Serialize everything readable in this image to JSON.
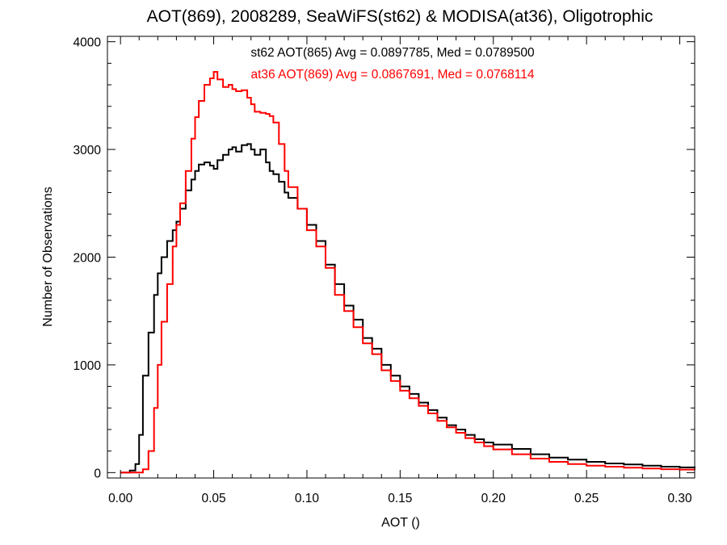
{
  "chart_data": {
    "type": "line",
    "title": "AOT(869), 2008289, SeaWiFS(st62) & MODISA(at36), Oligotrophic",
    "xlabel": "AOT ()",
    "ylabel": "Number of Observations",
    "xlim": [
      -0.007,
      0.308
    ],
    "ylim": [
      -50,
      4050
    ],
    "x_ticks": [
      0.0,
      0.05,
      0.1,
      0.15,
      0.2,
      0.25,
      0.3
    ],
    "x_tick_labels": [
      "0.00",
      "0.05",
      "0.10",
      "0.15",
      "0.20",
      "0.25",
      "0.30"
    ],
    "y_ticks": [
      0,
      1000,
      2000,
      3000,
      4000
    ],
    "y_tick_labels": [
      "0",
      "1000",
      "2000",
      "3000",
      "4000"
    ],
    "grid": false,
    "annotations": [
      {
        "text": "st62 AOT(865) Avg = 0.0897785, Med = 0.0789500",
        "color": "#000000"
      },
      {
        "text": "at36 AOT(869) Avg = 0.0867691, Med = 0.0768114",
        "color": "#ff0000"
      }
    ],
    "series": [
      {
        "color": "#000000",
        "x": [
          0.0,
          0.005,
          0.008,
          0.01,
          0.012,
          0.015,
          0.018,
          0.02,
          0.022,
          0.025,
          0.028,
          0.03,
          0.032,
          0.035,
          0.038,
          0.04,
          0.042,
          0.045,
          0.048,
          0.05,
          0.052,
          0.055,
          0.058,
          0.06,
          0.062,
          0.065,
          0.068,
          0.07,
          0.072,
          0.075,
          0.078,
          0.08,
          0.082,
          0.085,
          0.088,
          0.09,
          0.095,
          0.1,
          0.105,
          0.11,
          0.115,
          0.12,
          0.125,
          0.13,
          0.135,
          0.14,
          0.145,
          0.15,
          0.155,
          0.16,
          0.165,
          0.17,
          0.175,
          0.18,
          0.185,
          0.19,
          0.195,
          0.2,
          0.21,
          0.22,
          0.23,
          0.24,
          0.25,
          0.26,
          0.27,
          0.28,
          0.29,
          0.3,
          0.308
        ],
        "y": [
          0,
          20,
          80,
          350,
          900,
          1300,
          1650,
          1850,
          2000,
          2150,
          2250,
          2330,
          2450,
          2620,
          2720,
          2800,
          2860,
          2880,
          2850,
          2820,
          2900,
          2950,
          3000,
          3020,
          2980,
          3040,
          3050,
          3000,
          2950,
          3000,
          2880,
          2800,
          2770,
          2700,
          2600,
          2550,
          2450,
          2300,
          2150,
          1930,
          1750,
          1550,
          1420,
          1250,
          1150,
          1000,
          900,
          800,
          730,
          650,
          580,
          510,
          440,
          400,
          350,
          310,
          280,
          260,
          220,
          170,
          140,
          120,
          100,
          85,
          75,
          65,
          55,
          48,
          40
        ]
      },
      {
        "color": "#ff0000",
        "x": [
          0.0,
          0.01,
          0.012,
          0.015,
          0.018,
          0.02,
          0.022,
          0.025,
          0.028,
          0.03,
          0.032,
          0.035,
          0.038,
          0.04,
          0.042,
          0.045,
          0.048,
          0.05,
          0.052,
          0.055,
          0.058,
          0.06,
          0.062,
          0.065,
          0.068,
          0.07,
          0.072,
          0.075,
          0.078,
          0.08,
          0.082,
          0.085,
          0.088,
          0.09,
          0.095,
          0.1,
          0.105,
          0.11,
          0.115,
          0.12,
          0.125,
          0.13,
          0.135,
          0.14,
          0.145,
          0.15,
          0.155,
          0.16,
          0.165,
          0.17,
          0.175,
          0.18,
          0.185,
          0.19,
          0.195,
          0.2,
          0.21,
          0.22,
          0.23,
          0.24,
          0.25,
          0.26,
          0.27,
          0.28,
          0.29,
          0.3,
          0.308
        ],
        "y": [
          0,
          0,
          30,
          200,
          600,
          1000,
          1400,
          1750,
          2100,
          2300,
          2500,
          2800,
          3100,
          3300,
          3450,
          3600,
          3660,
          3720,
          3650,
          3580,
          3600,
          3560,
          3540,
          3550,
          3480,
          3420,
          3350,
          3340,
          3330,
          3310,
          3250,
          3050,
          2800,
          2650,
          2450,
          2250,
          2100,
          1900,
          1650,
          1500,
          1350,
          1200,
          1100,
          950,
          850,
          760,
          690,
          620,
          550,
          480,
          420,
          370,
          320,
          280,
          245,
          215,
          170,
          130,
          100,
          80,
          65,
          55,
          45,
          38,
          32,
          28,
          25
        ]
      }
    ]
  }
}
